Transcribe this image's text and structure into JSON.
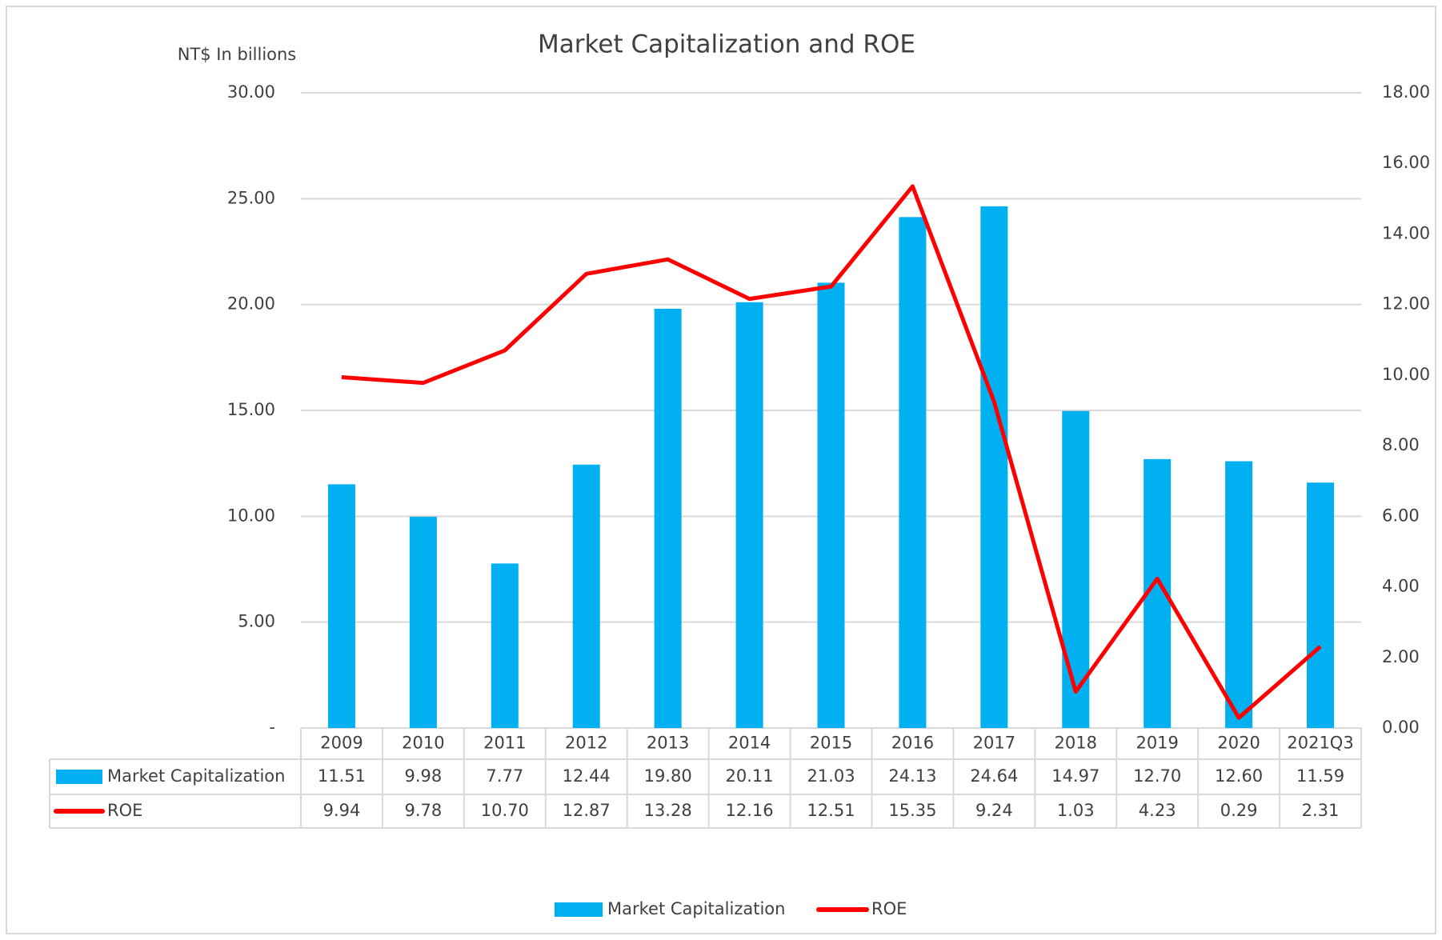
{
  "chart_data": {
    "type": "bar",
    "title": "Market Capitalization and ROE",
    "y_axis_label": "NT$ In billions",
    "categories": [
      "2009",
      "2010",
      "2011",
      "2012",
      "2013",
      "2014",
      "2015",
      "2016",
      "2017",
      "2018",
      "2019",
      "2020",
      "2021Q3"
    ],
    "series": [
      {
        "name": "Market Capitalization",
        "type": "bar",
        "color": "#00b0f0",
        "values": [
          11.51,
          9.98,
          7.77,
          12.44,
          19.8,
          20.11,
          21.03,
          24.13,
          24.64,
          14.97,
          12.7,
          12.6,
          11.59
        ],
        "value_labels": [
          "11.51",
          "9.98",
          "7.77",
          "12.44",
          "19.80",
          "20.11",
          "21.03",
          "24.13",
          "24.64",
          "14.97",
          "12.70",
          "12.60",
          "11.59"
        ]
      },
      {
        "name": "ROE",
        "type": "line",
        "axis": "y2",
        "color": "#ff0000",
        "values": [
          9.94,
          9.78,
          10.7,
          12.87,
          13.28,
          12.16,
          12.51,
          15.35,
          9.24,
          1.03,
          4.23,
          0.29,
          2.31
        ],
        "value_labels": [
          "9.94",
          "9.78",
          "10.70",
          "12.87",
          "13.28",
          "12.16",
          "12.51",
          "15.35",
          "9.24",
          "1.03",
          "4.23",
          "0.29",
          "2.31"
        ]
      }
    ],
    "ylim": [
      0,
      30
    ],
    "yticks": [
      {
        "value": 0,
        "label": "-"
      },
      {
        "value": 5,
        "label": "5.00"
      },
      {
        "value": 10,
        "label": "10.00"
      },
      {
        "value": 15,
        "label": "15.00"
      },
      {
        "value": 20,
        "label": "20.00"
      },
      {
        "value": 25,
        "label": "25.00"
      },
      {
        "value": 30,
        "label": "30.00"
      }
    ],
    "y2lim": [
      0,
      18
    ],
    "y2ticks": [
      {
        "value": 0,
        "label": "0.00"
      },
      {
        "value": 2,
        "label": "2.00"
      },
      {
        "value": 4,
        "label": "4.00"
      },
      {
        "value": 6,
        "label": "6.00"
      },
      {
        "value": 8,
        "label": "8.00"
      },
      {
        "value": 10,
        "label": "10.00"
      },
      {
        "value": 12,
        "label": "12.00"
      },
      {
        "value": 14,
        "label": "14.00"
      },
      {
        "value": 16,
        "label": "16.00"
      },
      {
        "value": 18,
        "label": "18.00"
      }
    ],
    "grid": true,
    "legend": "bottom"
  }
}
